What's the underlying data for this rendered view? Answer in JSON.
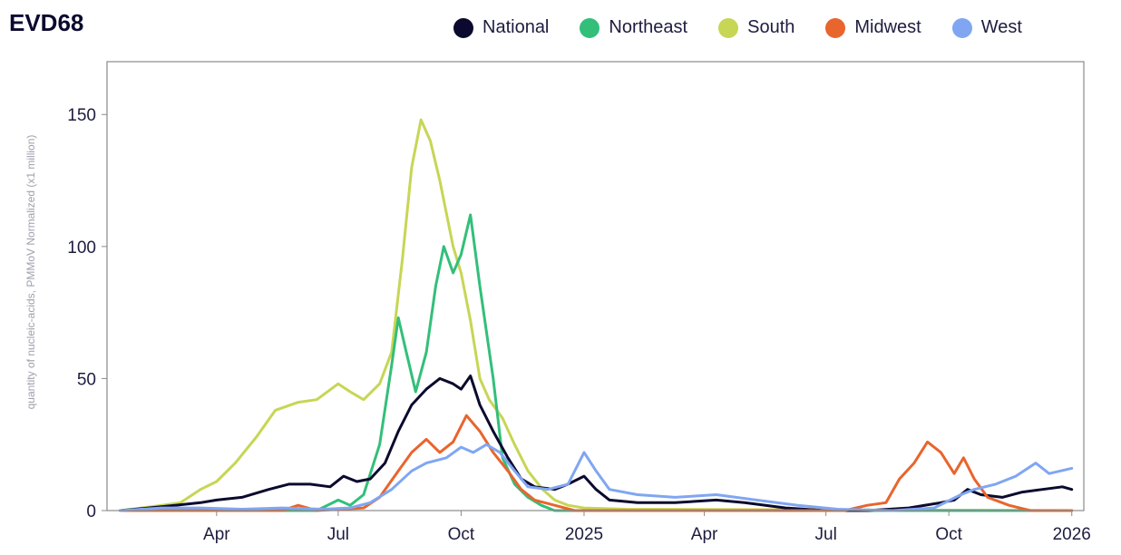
{
  "chart_data": {
    "type": "line",
    "title": "EVD68",
    "ylabel": "quantity of nucleic-acids, PMMoV Normalized (x1 million)",
    "xlabel": "",
    "ylim": [
      0,
      170
    ],
    "x_range": [
      "2024-01-01",
      "2026-01-01"
    ],
    "yticks": [
      0,
      50,
      100,
      150
    ],
    "xticks": [
      {
        "date": "2024-04-01",
        "label": "Apr"
      },
      {
        "date": "2024-07-01",
        "label": "Jul"
      },
      {
        "date": "2024-10-01",
        "label": "Oct"
      },
      {
        "date": "2025-01-01",
        "label": "2025"
      },
      {
        "date": "2025-04-01",
        "label": "Apr"
      },
      {
        "date": "2025-07-01",
        "label": "Jul"
      },
      {
        "date": "2025-10-01",
        "label": "Oct"
      },
      {
        "date": "2026-01-01",
        "label": "2026"
      }
    ],
    "series": [
      {
        "name": "South",
        "color": "#c7d654",
        "points": [
          [
            "2024-01-20",
            0
          ],
          [
            "2024-02-05",
            1
          ],
          [
            "2024-02-20",
            2
          ],
          [
            "2024-03-05",
            3
          ],
          [
            "2024-03-20",
            8
          ],
          [
            "2024-04-01",
            11
          ],
          [
            "2024-04-15",
            18
          ],
          [
            "2024-05-01",
            28
          ],
          [
            "2024-05-15",
            38
          ],
          [
            "2024-06-01",
            41
          ],
          [
            "2024-06-15",
            42
          ],
          [
            "2024-07-01",
            48
          ],
          [
            "2024-07-10",
            45
          ],
          [
            "2024-07-20",
            42
          ],
          [
            "2024-08-01",
            48
          ],
          [
            "2024-08-10",
            60
          ],
          [
            "2024-08-18",
            95
          ],
          [
            "2024-08-25",
            130
          ],
          [
            "2024-09-01",
            148
          ],
          [
            "2024-09-08",
            140
          ],
          [
            "2024-09-15",
            125
          ],
          [
            "2024-09-25",
            100
          ],
          [
            "2024-10-01",
            90
          ],
          [
            "2024-10-08",
            72
          ],
          [
            "2024-10-15",
            50
          ],
          [
            "2024-10-22",
            42
          ],
          [
            "2024-11-01",
            35
          ],
          [
            "2024-11-10",
            25
          ],
          [
            "2024-11-20",
            15
          ],
          [
            "2024-12-01",
            8
          ],
          [
            "2024-12-10",
            4
          ],
          [
            "2024-12-20",
            2
          ],
          [
            "2025-01-01",
            1
          ],
          [
            "2025-02-01",
            0.5
          ],
          [
            "2026-01-01",
            0
          ]
        ]
      },
      {
        "name": "Northeast",
        "color": "#33bf7a",
        "points": [
          [
            "2024-01-20",
            0
          ],
          [
            "2024-06-15",
            0
          ],
          [
            "2024-07-01",
            4
          ],
          [
            "2024-07-10",
            2
          ],
          [
            "2024-07-20",
            6
          ],
          [
            "2024-08-01",
            25
          ],
          [
            "2024-08-10",
            55
          ],
          [
            "2024-08-15",
            73
          ],
          [
            "2024-08-20",
            62
          ],
          [
            "2024-08-28",
            45
          ],
          [
            "2024-09-05",
            60
          ],
          [
            "2024-09-12",
            85
          ],
          [
            "2024-09-18",
            100
          ],
          [
            "2024-09-25",
            90
          ],
          [
            "2024-10-01",
            97
          ],
          [
            "2024-10-08",
            112
          ],
          [
            "2024-10-15",
            85
          ],
          [
            "2024-10-25",
            50
          ],
          [
            "2024-11-01",
            20
          ],
          [
            "2024-11-10",
            10
          ],
          [
            "2024-11-20",
            5
          ],
          [
            "2024-11-30",
            2
          ],
          [
            "2024-12-10",
            0
          ],
          [
            "2026-01-01",
            0
          ]
        ]
      },
      {
        "name": "National",
        "color": "#0b0a2e",
        "points": [
          [
            "2024-01-20",
            0
          ],
          [
            "2024-02-10",
            1
          ],
          [
            "2024-03-01",
            2
          ],
          [
            "2024-03-20",
            3
          ],
          [
            "2024-04-01",
            4
          ],
          [
            "2024-04-20",
            5
          ],
          [
            "2024-05-10",
            8
          ],
          [
            "2024-05-25",
            10
          ],
          [
            "2024-06-10",
            10
          ],
          [
            "2024-06-25",
            9
          ],
          [
            "2024-07-05",
            13
          ],
          [
            "2024-07-15",
            11
          ],
          [
            "2024-07-25",
            12
          ],
          [
            "2024-08-05",
            18
          ],
          [
            "2024-08-15",
            30
          ],
          [
            "2024-08-25",
            40
          ],
          [
            "2024-09-05",
            46
          ],
          [
            "2024-09-15",
            50
          ],
          [
            "2024-09-25",
            48
          ],
          [
            "2024-10-01",
            46
          ],
          [
            "2024-10-08",
            51
          ],
          [
            "2024-10-15",
            40
          ],
          [
            "2024-10-25",
            30
          ],
          [
            "2024-11-05",
            20
          ],
          [
            "2024-11-15",
            12
          ],
          [
            "2024-11-25",
            9
          ],
          [
            "2024-12-10",
            8
          ],
          [
            "2024-12-20",
            10
          ],
          [
            "2025-01-01",
            13
          ],
          [
            "2025-01-10",
            8
          ],
          [
            "2025-01-20",
            4
          ],
          [
            "2025-02-10",
            3
          ],
          [
            "2025-03-10",
            3
          ],
          [
            "2025-04-10",
            4
          ],
          [
            "2025-05-01",
            3
          ],
          [
            "2025-06-01",
            1
          ],
          [
            "2025-07-01",
            0
          ],
          [
            "2025-08-01",
            0
          ],
          [
            "2025-09-01",
            1
          ],
          [
            "2025-09-25",
            3
          ],
          [
            "2025-10-05",
            4
          ],
          [
            "2025-10-15",
            8
          ],
          [
            "2025-10-25",
            6
          ],
          [
            "2025-11-10",
            5
          ],
          [
            "2025-11-25",
            7
          ],
          [
            "2025-12-10",
            8
          ],
          [
            "2025-12-25",
            9
          ],
          [
            "2026-01-01",
            8
          ]
        ]
      },
      {
        "name": "Midwest",
        "color": "#e8652d",
        "points": [
          [
            "2024-01-20",
            0
          ],
          [
            "2024-05-20",
            0
          ],
          [
            "2024-06-01",
            2
          ],
          [
            "2024-06-15",
            0
          ],
          [
            "2024-07-20",
            1
          ],
          [
            "2024-08-01",
            5
          ],
          [
            "2024-08-15",
            15
          ],
          [
            "2024-08-25",
            22
          ],
          [
            "2024-09-05",
            27
          ],
          [
            "2024-09-15",
            22
          ],
          [
            "2024-09-25",
            26
          ],
          [
            "2024-10-05",
            36
          ],
          [
            "2024-10-15",
            30
          ],
          [
            "2024-10-25",
            22
          ],
          [
            "2024-11-05",
            15
          ],
          [
            "2024-11-15",
            8
          ],
          [
            "2024-11-25",
            4
          ],
          [
            "2024-12-10",
            2
          ],
          [
            "2024-12-25",
            0
          ],
          [
            "2025-07-15",
            0
          ],
          [
            "2025-08-01",
            2
          ],
          [
            "2025-08-15",
            3
          ],
          [
            "2025-08-25",
            12
          ],
          [
            "2025-09-05",
            18
          ],
          [
            "2025-09-15",
            26
          ],
          [
            "2025-09-25",
            22
          ],
          [
            "2025-10-05",
            14
          ],
          [
            "2025-10-12",
            20
          ],
          [
            "2025-10-20",
            12
          ],
          [
            "2025-10-30",
            5
          ],
          [
            "2025-11-15",
            2
          ],
          [
            "2025-12-01",
            0
          ],
          [
            "2026-01-01",
            0
          ]
        ]
      },
      {
        "name": "West",
        "color": "#80a6f2",
        "points": [
          [
            "2024-01-20",
            0
          ],
          [
            "2024-02-20",
            1
          ],
          [
            "2024-03-20",
            1
          ],
          [
            "2024-04-20",
            0.5
          ],
          [
            "2024-05-20",
            1
          ],
          [
            "2024-06-20",
            0.5
          ],
          [
            "2024-07-10",
            1
          ],
          [
            "2024-07-25",
            3
          ],
          [
            "2024-08-10",
            8
          ],
          [
            "2024-08-25",
            15
          ],
          [
            "2024-09-05",
            18
          ],
          [
            "2024-09-20",
            20
          ],
          [
            "2024-10-01",
            24
          ],
          [
            "2024-10-10",
            22
          ],
          [
            "2024-10-20",
            25
          ],
          [
            "2024-10-30",
            22
          ],
          [
            "2024-11-10",
            15
          ],
          [
            "2024-11-20",
            9
          ],
          [
            "2024-12-05",
            8
          ],
          [
            "2024-12-20",
            10
          ],
          [
            "2025-01-01",
            22
          ],
          [
            "2025-01-10",
            15
          ],
          [
            "2025-01-20",
            8
          ],
          [
            "2025-02-10",
            6
          ],
          [
            "2025-03-10",
            5
          ],
          [
            "2025-04-10",
            6
          ],
          [
            "2025-05-10",
            4
          ],
          [
            "2025-06-10",
            2
          ],
          [
            "2025-07-10",
            0.5
          ],
          [
            "2025-08-20",
            0
          ],
          [
            "2025-09-20",
            1
          ],
          [
            "2025-10-10",
            6
          ],
          [
            "2025-10-20",
            8
          ],
          [
            "2025-11-05",
            10
          ],
          [
            "2025-11-20",
            13
          ],
          [
            "2025-12-05",
            18
          ],
          [
            "2025-12-15",
            14
          ],
          [
            "2026-01-01",
            16
          ]
        ]
      }
    ],
    "legend": [
      {
        "name": "National",
        "color": "#0b0a2e"
      },
      {
        "name": "Northeast",
        "color": "#33bf7a"
      },
      {
        "name": "South",
        "color": "#c7d654"
      },
      {
        "name": "Midwest",
        "color": "#e8652d"
      },
      {
        "name": "West",
        "color": "#80a6f2"
      }
    ],
    "legend_position": "top-right",
    "grid": false
  }
}
